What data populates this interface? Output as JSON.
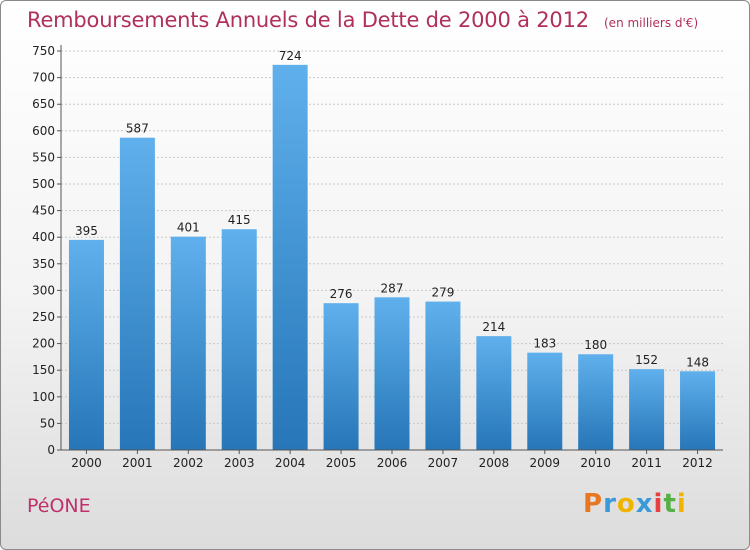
{
  "title": "Remboursements Annuels de la Dette de 2000 à 2012",
  "subtitle": "(en milliers d'€)",
  "commune": "PéONE",
  "logo": {
    "text": "Proxiti",
    "colors": [
      "#e87722",
      "#3a9ad9",
      "#f0b400",
      "#3a9ad9",
      "#e84040",
      "#55b046",
      "#f0b400"
    ]
  },
  "colors": {
    "bar_top": "#5fb0ec",
    "bar_bottom": "#2676b8",
    "title": "#b0305a",
    "grid": "#c8c8c8"
  },
  "chart_data": {
    "type": "bar",
    "categories": [
      "2000",
      "2001",
      "2002",
      "2003",
      "2004",
      "2005",
      "2006",
      "2007",
      "2008",
      "2009",
      "2010",
      "2011",
      "2012"
    ],
    "values": [
      395,
      587,
      401,
      415,
      724,
      276,
      287,
      279,
      214,
      183,
      180,
      152,
      148
    ],
    "title": "Remboursements Annuels de la Dette de 2000 à 2012",
    "subtitle": "(en milliers d'€)",
    "xlabel": "",
    "ylabel": "",
    "ylim": [
      0,
      750
    ],
    "yticks": [
      0,
      50,
      100,
      150,
      200,
      250,
      300,
      350,
      400,
      450,
      500,
      550,
      600,
      650,
      700,
      750
    ],
    "grid": true,
    "data_labels": true
  }
}
